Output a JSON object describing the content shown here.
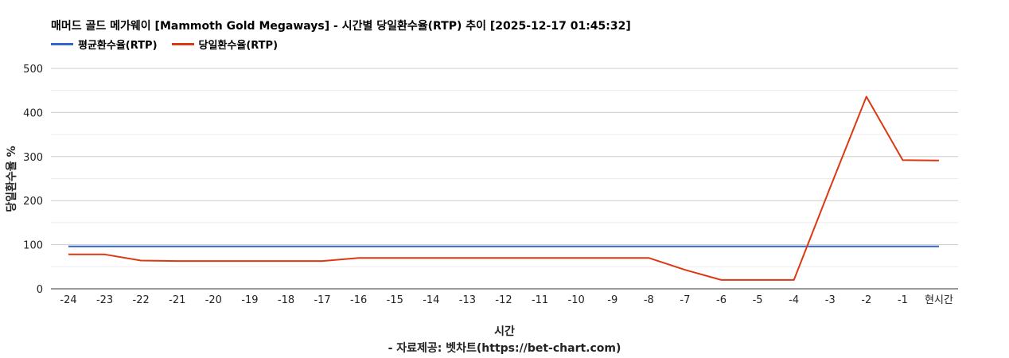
{
  "chart_data": {
    "type": "line",
    "title": "매머드 골드 메가웨이 [Mammoth Gold Megaways] - 시간별 당일환수율(RTP) 추이 [2025-12-17 01:45:32]",
    "xlabel": "시간",
    "source": "- 자료제공: 벳차트(https://bet-chart.com)",
    "ylabel": "당일환수율 %",
    "ylim": [
      0,
      500
    ],
    "yticks": [
      "0",
      "100",
      "200",
      "300",
      "400",
      "500"
    ],
    "categories": [
      "-24",
      "-23",
      "-22",
      "-21",
      "-20",
      "-19",
      "-18",
      "-17",
      "-16",
      "-15",
      "-14",
      "-13",
      "-12",
      "-11",
      "-10",
      "-9",
      "-8",
      "-7",
      "-6",
      "-5",
      "-4",
      "-3",
      "-2",
      "-1",
      "현시간"
    ],
    "legend_position": "top-left",
    "grid": true,
    "series": [
      {
        "name": "평균환수율(RTP)",
        "color": "#3366cc",
        "values": [
          96,
          96,
          96,
          96,
          96,
          96,
          96,
          96,
          96,
          96,
          96,
          96,
          96,
          96,
          96,
          96,
          96,
          96,
          96,
          96,
          96,
          96,
          96,
          96,
          96
        ]
      },
      {
        "name": "당일환수율(RTP)",
        "color": "#dc3912",
        "values": [
          78,
          78,
          64,
          63,
          63,
          63,
          63,
          63,
          70,
          70,
          70,
          70,
          70,
          70,
          70,
          70,
          70,
          43,
          20,
          20,
          20,
          230,
          436,
          292,
          291
        ]
      }
    ]
  }
}
